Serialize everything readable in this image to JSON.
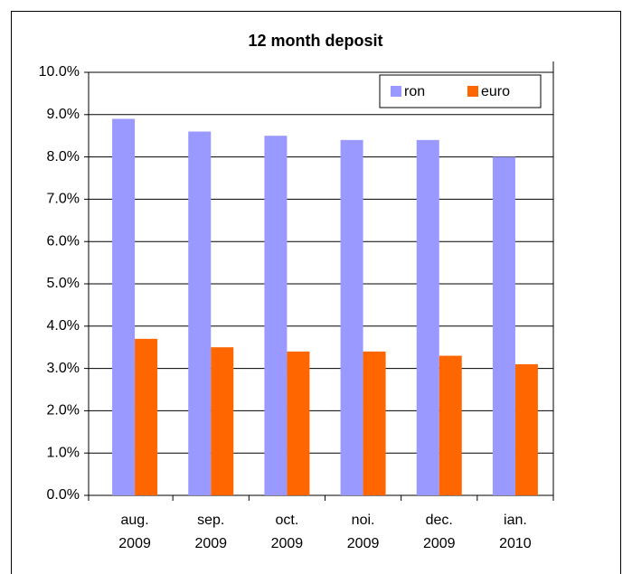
{
  "chart_data": {
    "type": "bar",
    "title": "12 month deposit",
    "categories": [
      "aug. 2009",
      "sep. 2009",
      "oct. 2009",
      "noi. 2009",
      "dec. 2009",
      "ian. 2010"
    ],
    "series": [
      {
        "name": "ron",
        "color": "#9999ff",
        "values": [
          8.9,
          8.6,
          8.5,
          8.4,
          8.4,
          8.0
        ]
      },
      {
        "name": "euro",
        "color": "#ff6600",
        "values": [
          3.7,
          3.5,
          3.4,
          3.4,
          3.3,
          3.1
        ]
      }
    ],
    "ylim": [
      0,
      10
    ],
    "yticks": [
      {
        "value": 0,
        "label": "0.0%"
      },
      {
        "value": 1,
        "label": "1.0%"
      },
      {
        "value": 2,
        "label": "2.0%"
      },
      {
        "value": 3,
        "label": "3.0%"
      },
      {
        "value": 4,
        "label": "4.0%"
      },
      {
        "value": 5,
        "label": "5.0%"
      },
      {
        "value": 6,
        "label": "6.0%"
      },
      {
        "value": 7,
        "label": "7.0%"
      },
      {
        "value": 8,
        "label": "8.0%"
      },
      {
        "value": 9,
        "label": "9.0%"
      },
      {
        "value": 10,
        "label": "10.0%"
      }
    ],
    "grid": true,
    "legend": "top-right"
  }
}
